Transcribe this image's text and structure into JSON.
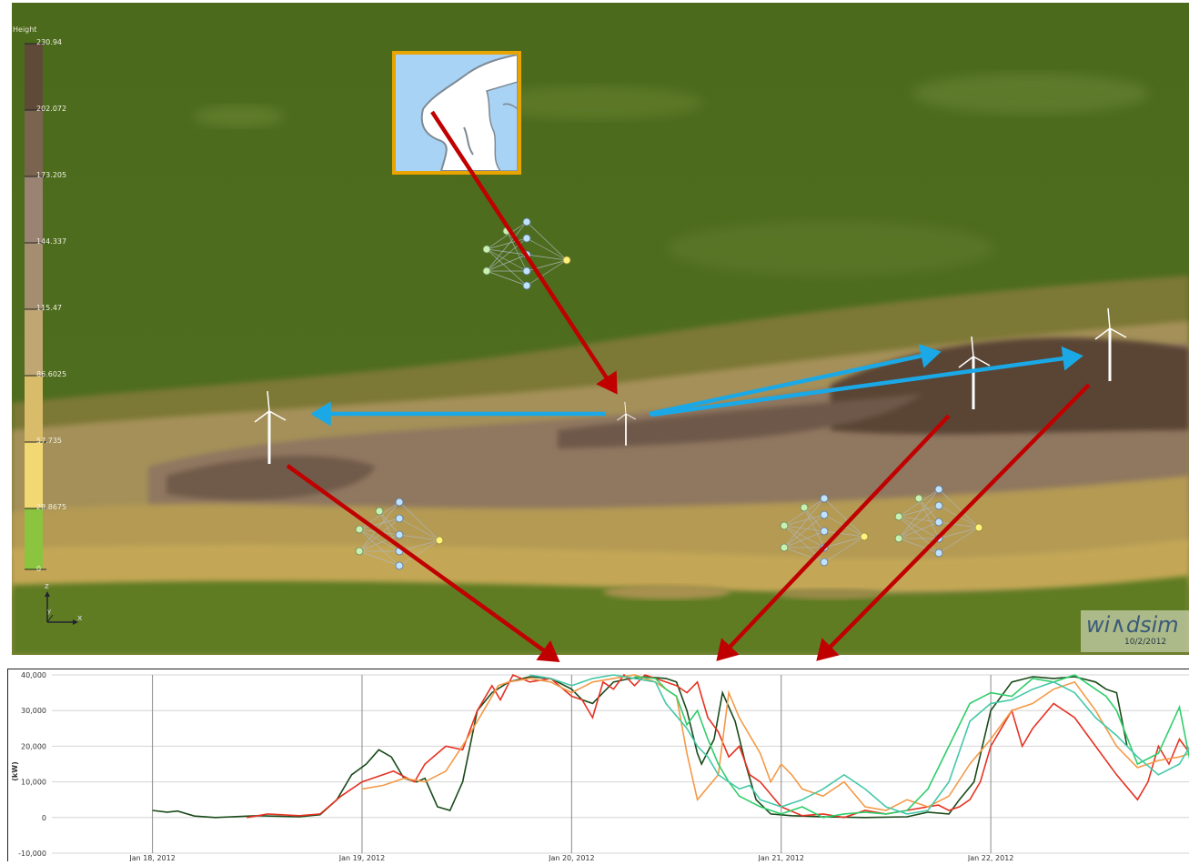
{
  "legend": {
    "title": "Height",
    "ticks": [
      "230.94",
      "202.072",
      "173.205",
      "144.337",
      "115.47",
      "86.6025",
      "57.735",
      "28.8675",
      "0"
    ],
    "colors": [
      "#5f4a38",
      "#7a6450",
      "#8f7866",
      "#a48e6f",
      "#bba675",
      "#d6bd6a",
      "#ecd165",
      "#f7e27a",
      "#8bc53f"
    ]
  },
  "axis_indicator": {
    "z_label": "z",
    "y_label": "y",
    "x_label": "x"
  },
  "badge": {
    "logo": "wi∧dsim",
    "date": "10/2/2012"
  },
  "icons": {
    "turbine": "wind-turbine-icon",
    "network": "neural-network-icon",
    "map": "scandinavia-map-icon"
  },
  "colors": {
    "arrow_red": "#c00000",
    "arrow_blue": "#1aa9e6",
    "inset_border": "#e8a400"
  },
  "chart_data": {
    "type": "line",
    "ylabel": "(kW)",
    "ylim": [
      -10000,
      40000
    ],
    "yticks": [
      "40,000",
      "30,000",
      "20,000",
      "10,000",
      "0",
      "-10,000"
    ],
    "xticks": [
      "Jan 18, 2012",
      "Jan 19, 2012",
      "Jan 20, 2012",
      "Jan 21, 2012",
      "Jan 22, 2012"
    ],
    "x_range_days": [
      18.0,
      22.95
    ],
    "series": [
      {
        "color": "#1a4a1a",
        "points": [
          [
            18.0,
            2000
          ],
          [
            18.07,
            1500
          ],
          [
            18.12,
            1800
          ],
          [
            18.2,
            400
          ],
          [
            18.3,
            0
          ],
          [
            18.5,
            500
          ],
          [
            18.7,
            200
          ],
          [
            18.8,
            800
          ],
          [
            18.88,
            5000
          ],
          [
            18.95,
            12000
          ],
          [
            19.02,
            15000
          ],
          [
            19.08,
            19000
          ],
          [
            19.14,
            17000
          ],
          [
            19.2,
            11000
          ],
          [
            19.26,
            10000
          ],
          [
            19.3,
            11000
          ],
          [
            19.36,
            3000
          ],
          [
            19.42,
            2000
          ],
          [
            19.48,
            10000
          ],
          [
            19.55,
            30000
          ],
          [
            19.62,
            35000
          ],
          [
            19.7,
            38000
          ],
          [
            19.8,
            39500
          ],
          [
            19.9,
            39000
          ],
          [
            20.0,
            36000
          ],
          [
            20.05,
            33000
          ],
          [
            20.1,
            32000
          ],
          [
            20.2,
            38000
          ],
          [
            20.28,
            39000
          ],
          [
            20.35,
            39500
          ],
          [
            20.45,
            39000
          ],
          [
            20.5,
            38000
          ],
          [
            20.55,
            30000
          ],
          [
            20.6,
            18000
          ],
          [
            20.62,
            15000
          ],
          [
            20.68,
            22000
          ],
          [
            20.72,
            35000
          ],
          [
            20.78,
            27000
          ],
          [
            20.83,
            15000
          ],
          [
            20.88,
            5000
          ],
          [
            20.95,
            1000
          ],
          [
            21.05,
            500
          ],
          [
            21.2,
            200
          ],
          [
            21.4,
            0
          ],
          [
            21.6,
            200
          ],
          [
            21.7,
            1500
          ],
          [
            21.8,
            1000
          ],
          [
            21.85,
            5000
          ],
          [
            21.92,
            10000
          ],
          [
            22.0,
            30000
          ],
          [
            22.1,
            38000
          ],
          [
            22.2,
            39500
          ],
          [
            22.3,
            39000
          ],
          [
            22.4,
            39500
          ],
          [
            22.5,
            38000
          ],
          [
            22.55,
            36000
          ],
          [
            22.6,
            35000
          ],
          [
            22.65,
            20000
          ]
        ]
      },
      {
        "color": "#e53222",
        "points": [
          [
            18.45,
            0
          ],
          [
            18.55,
            1000
          ],
          [
            18.7,
            500
          ],
          [
            18.8,
            1000
          ],
          [
            18.9,
            6000
          ],
          [
            19.0,
            10000
          ],
          [
            19.1,
            12000
          ],
          [
            19.15,
            13000
          ],
          [
            19.25,
            10000
          ],
          [
            19.3,
            15000
          ],
          [
            19.4,
            20000
          ],
          [
            19.48,
            19000
          ],
          [
            19.55,
            30000
          ],
          [
            19.62,
            37000
          ],
          [
            19.66,
            33000
          ],
          [
            19.72,
            40000
          ],
          [
            19.8,
            38000
          ],
          [
            19.9,
            39000
          ],
          [
            20.0,
            34000
          ],
          [
            20.05,
            33000
          ],
          [
            20.1,
            28000
          ],
          [
            20.15,
            38000
          ],
          [
            20.2,
            36000
          ],
          [
            20.25,
            40000
          ],
          [
            20.3,
            37000
          ],
          [
            20.35,
            40000
          ],
          [
            20.45,
            38000
          ],
          [
            20.5,
            37000
          ],
          [
            20.55,
            35000
          ],
          [
            20.6,
            38000
          ],
          [
            20.65,
            28000
          ],
          [
            20.7,
            24000
          ],
          [
            20.75,
            17000
          ],
          [
            20.8,
            20000
          ],
          [
            20.85,
            12000
          ],
          [
            20.9,
            10000
          ],
          [
            21.0,
            3000
          ],
          [
            21.1,
            500
          ],
          [
            21.2,
            1000
          ],
          [
            21.3,
            0
          ],
          [
            21.4,
            2000
          ],
          [
            21.5,
            1000
          ],
          [
            21.6,
            2000
          ],
          [
            21.7,
            3000
          ],
          [
            21.75,
            3500
          ],
          [
            21.8,
            2000
          ],
          [
            21.85,
            3000
          ],
          [
            21.9,
            5000
          ],
          [
            21.95,
            10000
          ],
          [
            22.0,
            20000
          ],
          [
            22.05,
            25000
          ],
          [
            22.1,
            30000
          ],
          [
            22.15,
            20000
          ],
          [
            22.2,
            25000
          ],
          [
            22.3,
            32000
          ],
          [
            22.4,
            28000
          ],
          [
            22.5,
            20000
          ],
          [
            22.6,
            12000
          ],
          [
            22.7,
            5000
          ],
          [
            22.75,
            10000
          ],
          [
            22.8,
            20000
          ],
          [
            22.85,
            15000
          ],
          [
            22.9,
            22000
          ],
          [
            22.95,
            18000
          ]
        ]
      },
      {
        "color": "#f49a48",
        "points": [
          [
            19.0,
            8000
          ],
          [
            19.1,
            9000
          ],
          [
            19.2,
            11000
          ],
          [
            19.3,
            10000
          ],
          [
            19.4,
            13000
          ],
          [
            19.5,
            22000
          ],
          [
            19.58,
            30000
          ],
          [
            19.65,
            37000
          ],
          [
            19.7,
            38000
          ],
          [
            19.8,
            39000
          ],
          [
            19.9,
            38000
          ],
          [
            20.0,
            35000
          ],
          [
            20.1,
            38000
          ],
          [
            20.2,
            39000
          ],
          [
            20.3,
            40000
          ],
          [
            20.4,
            38000
          ],
          [
            20.5,
            34000
          ],
          [
            20.55,
            18000
          ],
          [
            20.6,
            5000
          ],
          [
            20.7,
            12000
          ],
          [
            20.75,
            35000
          ],
          [
            20.8,
            28000
          ],
          [
            20.9,
            18000
          ],
          [
            20.95,
            10000
          ],
          [
            21.0,
            15000
          ],
          [
            21.05,
            12000
          ],
          [
            21.1,
            8000
          ],
          [
            21.2,
            6000
          ],
          [
            21.3,
            10000
          ],
          [
            21.4,
            3000
          ],
          [
            21.5,
            2000
          ],
          [
            21.6,
            5000
          ],
          [
            21.7,
            3000
          ],
          [
            21.8,
            6000
          ],
          [
            21.9,
            15000
          ],
          [
            22.0,
            22000
          ],
          [
            22.1,
            30000
          ],
          [
            22.2,
            32000
          ],
          [
            22.3,
            36000
          ],
          [
            22.4,
            38000
          ],
          [
            22.5,
            30000
          ],
          [
            22.6,
            20000
          ],
          [
            22.7,
            14000
          ],
          [
            22.8,
            16000
          ],
          [
            22.9,
            17000
          ],
          [
            22.95,
            18000
          ]
        ]
      },
      {
        "color": "#2fce6a",
        "points": [
          [
            20.3,
            39500
          ],
          [
            20.4,
            39000
          ],
          [
            20.45,
            36000
          ],
          [
            20.5,
            34000
          ],
          [
            20.55,
            26000
          ],
          [
            20.6,
            30000
          ],
          [
            20.65,
            22000
          ],
          [
            20.7,
            15000
          ],
          [
            20.75,
            10000
          ],
          [
            20.8,
            6000
          ],
          [
            20.9,
            3000
          ],
          [
            21.0,
            1000
          ],
          [
            21.1,
            3000
          ],
          [
            21.2,
            0
          ],
          [
            21.3,
            1000
          ],
          [
            21.4,
            1500
          ],
          [
            21.5,
            1000
          ],
          [
            21.6,
            2000
          ],
          [
            21.7,
            8000
          ],
          [
            21.8,
            20000
          ],
          [
            21.9,
            32000
          ],
          [
            22.0,
            35000
          ],
          [
            22.1,
            34000
          ],
          [
            22.2,
            39000
          ],
          [
            22.3,
            38000
          ],
          [
            22.4,
            40000
          ],
          [
            22.5,
            36000
          ],
          [
            22.55,
            34000
          ],
          [
            22.6,
            30000
          ],
          [
            22.7,
            15000
          ],
          [
            22.8,
            18000
          ],
          [
            22.9,
            31000
          ],
          [
            22.95,
            16000
          ]
        ]
      },
      {
        "color": "#45c8a8",
        "points": [
          [
            19.8,
            40000
          ],
          [
            19.9,
            39000
          ],
          [
            20.0,
            37000
          ],
          [
            20.1,
            39000
          ],
          [
            20.2,
            40000
          ],
          [
            20.3,
            39000
          ],
          [
            20.4,
            38000
          ],
          [
            20.45,
            32000
          ],
          [
            20.55,
            25000
          ],
          [
            20.6,
            20000
          ],
          [
            20.65,
            17000
          ],
          [
            20.7,
            12000
          ],
          [
            20.75,
            10000
          ],
          [
            20.8,
            8000
          ],
          [
            20.85,
            9000
          ],
          [
            20.9,
            5000
          ],
          [
            21.0,
            3000
          ],
          [
            21.1,
            5000
          ],
          [
            21.2,
            8000
          ],
          [
            21.3,
            12000
          ],
          [
            21.4,
            8000
          ],
          [
            21.5,
            3000
          ],
          [
            21.6,
            1000
          ],
          [
            21.7,
            2000
          ],
          [
            21.8,
            10000
          ],
          [
            21.9,
            27000
          ],
          [
            22.0,
            32000
          ],
          [
            22.1,
            33000
          ],
          [
            22.2,
            36000
          ],
          [
            22.3,
            38000
          ],
          [
            22.4,
            35000
          ],
          [
            22.5,
            28000
          ],
          [
            22.6,
            23000
          ],
          [
            22.7,
            17000
          ],
          [
            22.8,
            12000
          ],
          [
            22.9,
            15000
          ],
          [
            22.95,
            20000
          ]
        ]
      }
    ]
  }
}
